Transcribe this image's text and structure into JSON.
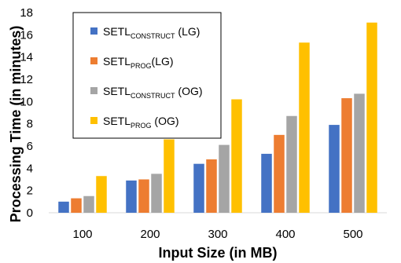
{
  "chart_data": {
    "type": "bar",
    "xlabel": "Input Size (in MB)",
    "ylabel": "Processing Time (in minutes)",
    "categories": [
      "100",
      "200",
      "300",
      "400",
      "500"
    ],
    "ylim": [
      0,
      18
    ],
    "yticks": [
      0,
      2,
      4,
      6,
      8,
      10,
      12,
      14,
      16,
      18
    ],
    "grid": false,
    "legend_position": "top-left",
    "series": [
      {
        "name": "SETL",
        "name_sub": "CONSTRUCT",
        "name_suffix": " (LG)",
        "color": "#4472C4",
        "values": [
          1.0,
          2.9,
          4.4,
          5.3,
          7.9
        ]
      },
      {
        "name": "SETL",
        "name_sub": "PROG",
        "name_suffix": "(LG)",
        "color": "#ED7D31",
        "values": [
          1.3,
          3.0,
          4.8,
          7.0,
          10.3
        ]
      },
      {
        "name": "SETL",
        "name_sub": "CONSTRUCT",
        "name_suffix": " (OG)",
        "color": "#A5A5A5",
        "values": [
          1.5,
          3.5,
          6.1,
          8.7,
          10.7
        ]
      },
      {
        "name": "SETL",
        "name_sub": "PROG",
        "name_suffix": " (OG)",
        "color": "#FFC000",
        "values": [
          3.3,
          6.6,
          10.2,
          15.3,
          17.1
        ]
      }
    ]
  }
}
